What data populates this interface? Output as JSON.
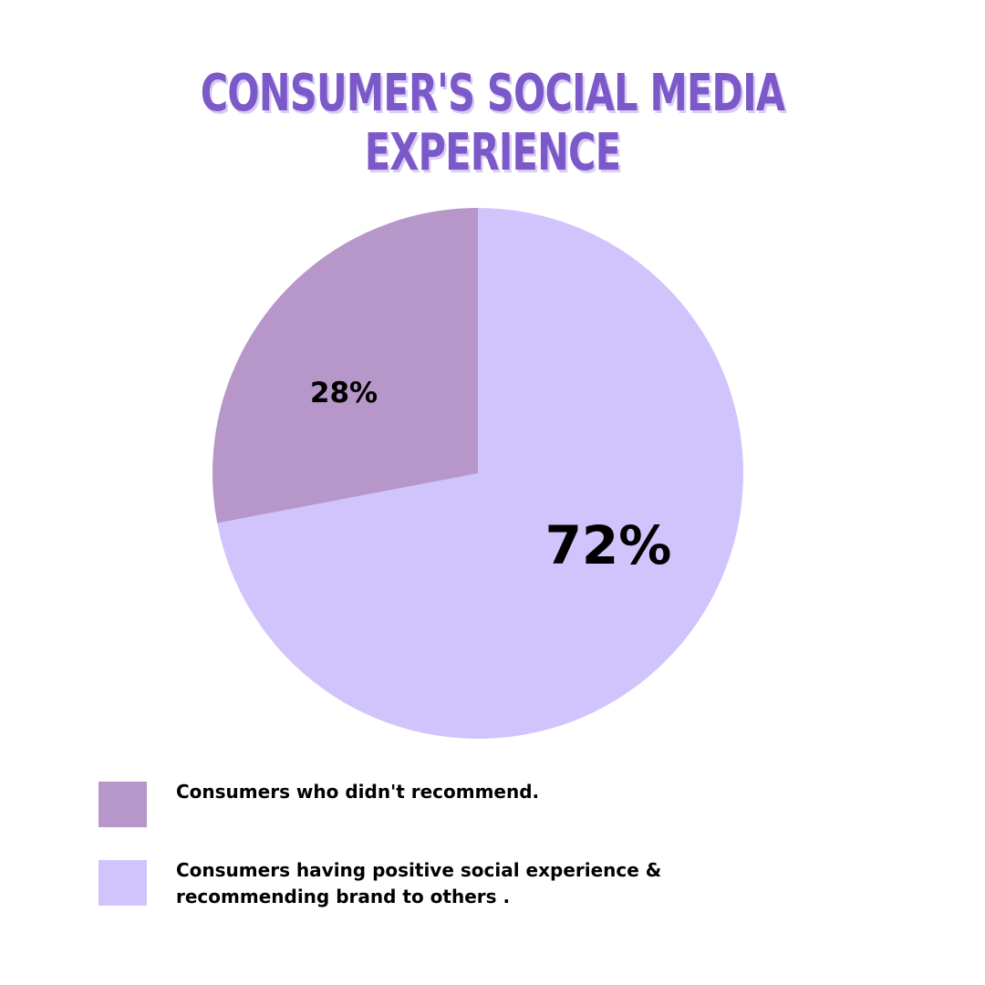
{
  "chart_data": {
    "type": "pie",
    "title": "CONSUMER'S SOCIAL MEDIA EXPERIENCE",
    "slices": [
      {
        "label": "Consumers who didn't recommend.",
        "value": 28,
        "display": "28%",
        "color": "#b797c9"
      },
      {
        "label": "Consumers having positive social experience & recommending brand to others .",
        "value": 72,
        "display": "72%",
        "color": "#d1c4fd"
      }
    ],
    "legend_position": "bottom-left"
  }
}
